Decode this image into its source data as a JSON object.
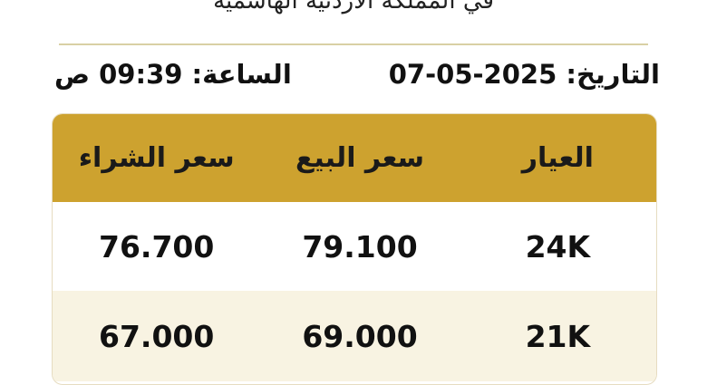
{
  "header": {
    "subtitle": "في المملكة الأردنية الهاشمية"
  },
  "meta": {
    "date_label": "التاريخ:",
    "date_value": "07-05-2025",
    "time_label": "الساعة:",
    "time_value": "09:39 ص"
  },
  "table": {
    "columns": [
      "العيار",
      "سعر البيع",
      "سعر الشراء"
    ],
    "rows": [
      {
        "karat": "24K",
        "sell": "79.100",
        "buy": "76.700"
      },
      {
        "karat": "21K",
        "sell": "69.000",
        "buy": "67.000"
      }
    ]
  },
  "colors": {
    "header_gold": "#cda22f",
    "row_alt": "#f8f3e2",
    "divider": "#d9d0a4"
  }
}
